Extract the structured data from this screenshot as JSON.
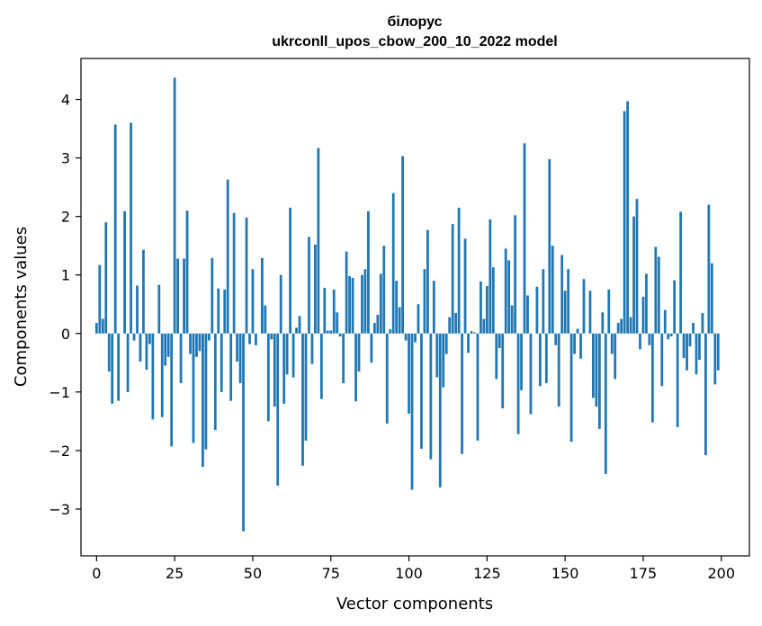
{
  "chart_data": {
    "type": "bar",
    "title_line1": "білорус",
    "title_line2": "ukrconll_upos_cbow_200_10_2022 model",
    "xlabel": "Vector components",
    "ylabel": "Components values",
    "xlim": [
      -5,
      209
    ],
    "ylim": [
      -3.8,
      4.7
    ],
    "xticks": [
      0,
      25,
      50,
      75,
      100,
      125,
      150,
      175,
      200
    ],
    "yticks": [
      -3,
      -2,
      -1,
      0,
      1,
      2,
      3,
      4
    ],
    "ytick_labels": [
      "−3",
      "−2",
      "−1",
      "0",
      "1",
      "2",
      "3",
      "4"
    ],
    "grid": false,
    "bar_color": "#1f77b4",
    "values": [
      0.18,
      1.17,
      0.25,
      1.9,
      -0.65,
      -1.2,
      3.57,
      -1.15,
      0.0,
      2.09,
      -1.0,
      3.6,
      -0.12,
      0.82,
      -0.48,
      1.43,
      -0.62,
      -0.18,
      -1.47,
      0.0,
      0.83,
      -1.43,
      -0.55,
      -0.4,
      -1.93,
      4.37,
      1.28,
      -0.85,
      1.28,
      2.1,
      -0.35,
      -1.87,
      -0.4,
      -0.3,
      -2.28,
      -1.98,
      -0.12,
      1.29,
      -1.65,
      0.77,
      -1.0,
      0.75,
      2.63,
      -1.15,
      2.06,
      -0.48,
      -0.85,
      -3.38,
      1.98,
      -0.18,
      1.1,
      -0.2,
      0.0,
      1.29,
      0.48,
      -1.5,
      -0.1,
      -1.25,
      -2.6,
      1.0,
      -1.2,
      -0.7,
      2.15,
      -0.75,
      0.1,
      0.3,
      -2.26,
      -1.83,
      1.65,
      -0.52,
      1.52,
      3.17,
      -1.12,
      0.78,
      0.05,
      0.05,
      0.75,
      0.36,
      -0.05,
      -0.85,
      1.4,
      0.98,
      0.95,
      -1.16,
      -0.65,
      1.0,
      1.1,
      2.09,
      -0.5,
      0.18,
      0.32,
      1.02,
      1.5,
      -1.54,
      0.07,
      2.4,
      0.9,
      0.45,
      3.03,
      -0.12,
      -1.37,
      -2.67,
      -0.15,
      0.5,
      -1.97,
      1.1,
      1.77,
      -2.15,
      0.9,
      -0.75,
      -2.63,
      -0.92,
      -0.35,
      0.28,
      1.87,
      0.35,
      2.15,
      -2.06,
      1.62,
      -0.33,
      0.04,
      0.02,
      -1.83,
      0.89,
      0.25,
      0.81,
      1.95,
      1.13,
      -0.78,
      -0.25,
      -1.28,
      1.45,
      1.25,
      0.48,
      2.02,
      -1.72,
      -0.97,
      3.25,
      0.65,
      -1.38,
      0.0,
      0.8,
      -0.9,
      1.1,
      -0.85,
      2.98,
      1.5,
      -0.2,
      -1.25,
      1.34,
      0.73,
      1.1,
      -1.85,
      -0.35,
      0.08,
      -0.43,
      0.93,
      0.0,
      0.73,
      -1.1,
      -1.25,
      -1.63,
      0.36,
      -2.4,
      0.75,
      -0.35,
      -0.78,
      0.18,
      0.25,
      3.8,
      3.97,
      0.28,
      2.0,
      2.3,
      -0.27,
      0.63,
      1.02,
      -0.2,
      -1.52,
      1.48,
      1.31,
      -0.9,
      0.4,
      -0.1,
      -0.05,
      0.91,
      -1.6,
      2.08,
      -0.42,
      -0.63,
      -0.22,
      0.18,
      -0.7,
      -0.45,
      0.35,
      -2.08,
      2.2,
      1.2,
      -0.87,
      -0.63
    ]
  }
}
